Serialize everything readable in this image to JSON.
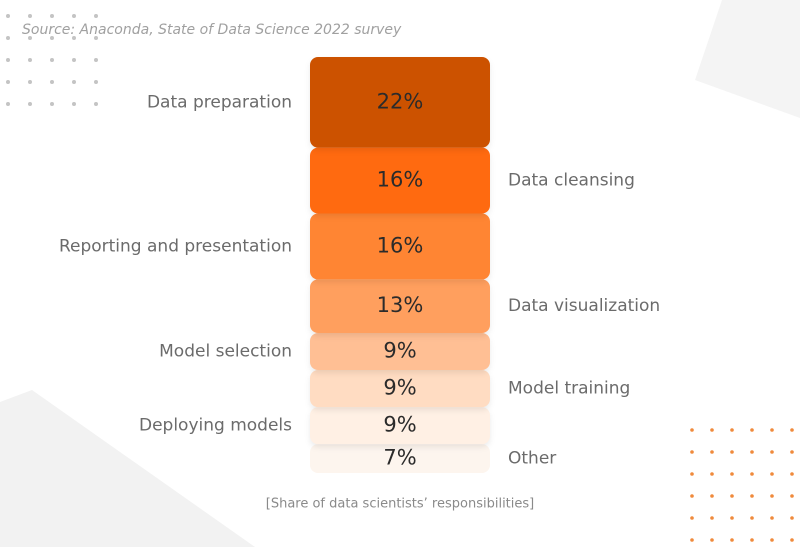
{
  "chart_data": {
    "type": "stacked-column",
    "source": "Source: Anaconda, State of Data Science 2022 survey",
    "caption": "[Share of data scientists’ responsibilities]",
    "categories": [
      "Data preparation",
      "Data cleansing",
      "Reporting and presentation",
      "Data visualization",
      "Model selection",
      "Model training",
      "Deploying models",
      "Other"
    ],
    "values": [
      22,
      16,
      16,
      13,
      9,
      9,
      9,
      7
    ],
    "value_labels": [
      "22%",
      "16%",
      "16%",
      "13%",
      "9%",
      "9%",
      "9%",
      "7%"
    ],
    "colors": [
      "#cc5200",
      "#ff6a10",
      "#ff8533",
      "#ff9f5e",
      "#ffbf94",
      "#ffdcc2",
      "#fff0e4",
      "#fdf5ee"
    ]
  }
}
